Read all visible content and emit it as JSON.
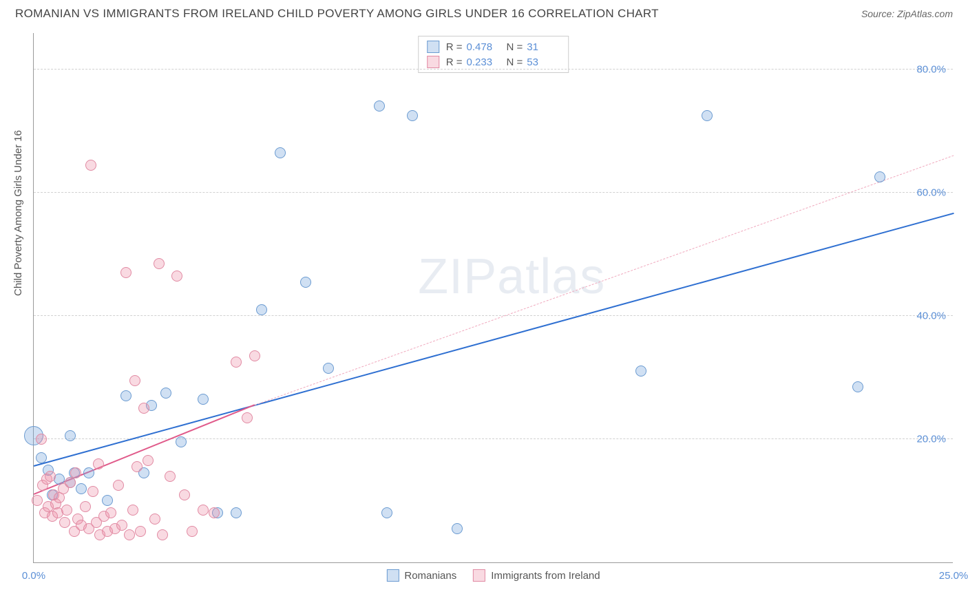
{
  "title": "ROMANIAN VS IMMIGRANTS FROM IRELAND CHILD POVERTY AMONG GIRLS UNDER 16 CORRELATION CHART",
  "source": "Source: ZipAtlas.com",
  "watermark_bold": "ZIP",
  "watermark_thin": "atlas",
  "y_axis_label": "Child Poverty Among Girls Under 16",
  "chart": {
    "type": "scatter",
    "xlim": [
      0,
      25
    ],
    "ylim": [
      0,
      86
    ],
    "x_ticks": [
      0,
      25
    ],
    "x_tick_labels": [
      "0.0%",
      "25.0%"
    ],
    "y_ticks": [
      20,
      40,
      60,
      80
    ],
    "y_tick_labels": [
      "20.0%",
      "40.0%",
      "60.0%",
      "80.0%"
    ],
    "background_color": "#ffffff",
    "grid_color": "#d0d0d0",
    "axis_color": "#999999",
    "tick_label_color": "#5b8fd6",
    "tick_label_fontsize": 15,
    "title_fontsize": 17,
    "title_color": "#444444",
    "point_radius": 8,
    "series": [
      {
        "name": "Romanians",
        "fill_color": "rgba(120,165,220,0.35)",
        "stroke_color": "#6b9bd1",
        "trend": {
          "x1": 0,
          "y1": 15.5,
          "x2": 25,
          "y2": 56.5,
          "color": "#2e6fd1",
          "width": 2.5,
          "dash": "solid"
        },
        "trend_extrapolated": null,
        "R": "0.478",
        "N": "31",
        "points": [
          {
            "x": 0.0,
            "y": 20.5,
            "r": 14
          },
          {
            "x": 0.2,
            "y": 17.0
          },
          {
            "x": 0.4,
            "y": 15.0
          },
          {
            "x": 0.5,
            "y": 11.0
          },
          {
            "x": 0.7,
            "y": 13.5
          },
          {
            "x": 1.0,
            "y": 20.5
          },
          {
            "x": 1.0,
            "y": 13.0
          },
          {
            "x": 1.1,
            "y": 14.5
          },
          {
            "x": 1.3,
            "y": 12.0
          },
          {
            "x": 1.5,
            "y": 14.5
          },
          {
            "x": 2.0,
            "y": 10.0
          },
          {
            "x": 2.5,
            "y": 27.0
          },
          {
            "x": 3.0,
            "y": 14.5
          },
          {
            "x": 3.2,
            "y": 25.5
          },
          {
            "x": 3.6,
            "y": 27.5
          },
          {
            "x": 4.0,
            "y": 19.5
          },
          {
            "x": 4.6,
            "y": 26.5
          },
          {
            "x": 5.0,
            "y": 8.0
          },
          {
            "x": 5.5,
            "y": 8.0
          },
          {
            "x": 6.2,
            "y": 41.0
          },
          {
            "x": 6.7,
            "y": 66.5
          },
          {
            "x": 7.4,
            "y": 45.5
          },
          {
            "x": 8.0,
            "y": 31.5
          },
          {
            "x": 9.4,
            "y": 74.0
          },
          {
            "x": 9.6,
            "y": 8.0
          },
          {
            "x": 10.3,
            "y": 72.5
          },
          {
            "x": 11.5,
            "y": 5.5
          },
          {
            "x": 16.5,
            "y": 31.0
          },
          {
            "x": 18.3,
            "y": 72.5
          },
          {
            "x": 22.4,
            "y": 28.5
          },
          {
            "x": 23.0,
            "y": 62.5
          }
        ]
      },
      {
        "name": "Immigrants from Ireland",
        "fill_color": "rgba(235,140,165,0.32)",
        "stroke_color": "#e18aa3",
        "trend": {
          "x1": 0,
          "y1": 11.0,
          "x2": 6.0,
          "y2": 25.5,
          "color": "#e05a8a",
          "width": 2.5,
          "dash": "solid"
        },
        "trend_extrapolated": {
          "x1": 6.0,
          "y1": 25.5,
          "x2": 25,
          "y2": 66.0,
          "color": "#f0a8bd",
          "width": 1.2,
          "dash": "dashed"
        },
        "R": "0.233",
        "N": "53",
        "points": [
          {
            "x": 0.1,
            "y": 10.0
          },
          {
            "x": 0.2,
            "y": 20.0
          },
          {
            "x": 0.25,
            "y": 12.5
          },
          {
            "x": 0.3,
            "y": 8.0
          },
          {
            "x": 0.35,
            "y": 13.5
          },
          {
            "x": 0.4,
            "y": 9.0
          },
          {
            "x": 0.45,
            "y": 14.0
          },
          {
            "x": 0.5,
            "y": 7.5
          },
          {
            "x": 0.55,
            "y": 11.0
          },
          {
            "x": 0.6,
            "y": 9.5
          },
          {
            "x": 0.65,
            "y": 8.0
          },
          {
            "x": 0.7,
            "y": 10.5
          },
          {
            "x": 0.8,
            "y": 12.0
          },
          {
            "x": 0.85,
            "y": 6.5
          },
          {
            "x": 0.9,
            "y": 8.5
          },
          {
            "x": 1.0,
            "y": 13.0
          },
          {
            "x": 1.1,
            "y": 5.0
          },
          {
            "x": 1.15,
            "y": 14.5
          },
          {
            "x": 1.2,
            "y": 7.0
          },
          {
            "x": 1.3,
            "y": 6.0
          },
          {
            "x": 1.4,
            "y": 9.0
          },
          {
            "x": 1.5,
            "y": 5.5
          },
          {
            "x": 1.55,
            "y": 64.5
          },
          {
            "x": 1.6,
            "y": 11.5
          },
          {
            "x": 1.7,
            "y": 6.5
          },
          {
            "x": 1.75,
            "y": 16.0
          },
          {
            "x": 1.8,
            "y": 4.5
          },
          {
            "x": 1.9,
            "y": 7.5
          },
          {
            "x": 2.0,
            "y": 5.0
          },
          {
            "x": 2.1,
            "y": 8.0
          },
          {
            "x": 2.2,
            "y": 5.5
          },
          {
            "x": 2.3,
            "y": 12.5
          },
          {
            "x": 2.4,
            "y": 6.0
          },
          {
            "x": 2.5,
            "y": 47.0
          },
          {
            "x": 2.6,
            "y": 4.5
          },
          {
            "x": 2.7,
            "y": 8.5
          },
          {
            "x": 2.75,
            "y": 29.5
          },
          {
            "x": 2.8,
            "y": 15.5
          },
          {
            "x": 2.9,
            "y": 5.0
          },
          {
            "x": 3.0,
            "y": 25.0
          },
          {
            "x": 3.1,
            "y": 16.5
          },
          {
            "x": 3.3,
            "y": 7.0
          },
          {
            "x": 3.4,
            "y": 48.5
          },
          {
            "x": 3.5,
            "y": 4.5
          },
          {
            "x": 3.7,
            "y": 14.0
          },
          {
            "x": 3.9,
            "y": 46.5
          },
          {
            "x": 4.1,
            "y": 11.0
          },
          {
            "x": 4.3,
            "y": 5.0
          },
          {
            "x": 4.6,
            "y": 8.5
          },
          {
            "x": 4.9,
            "y": 8.0
          },
          {
            "x": 5.5,
            "y": 32.5
          },
          {
            "x": 5.8,
            "y": 23.5
          },
          {
            "x": 6.0,
            "y": 33.5
          }
        ]
      }
    ]
  },
  "legend_bottom": {
    "series1_label": "Romanians",
    "series2_label": "Immigrants from Ireland"
  }
}
